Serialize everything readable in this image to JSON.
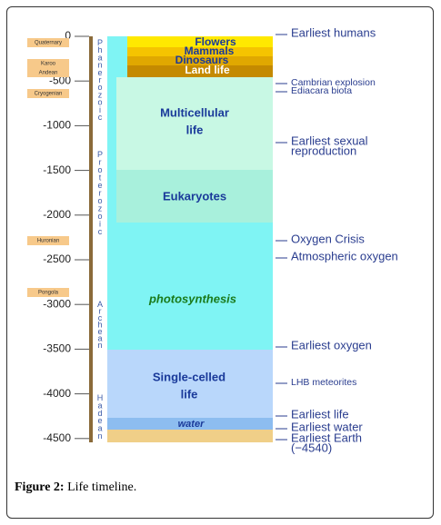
{
  "figure": {
    "axis_ticks": [
      "0",
      "-500",
      "-1000",
      "-1500",
      "-2000",
      "-2500",
      "-3000",
      "-3500",
      "-4000",
      "-4500"
    ],
    "era_labels": [
      "Quaternary",
      "Karoo",
      "Andean",
      "Cryogenian",
      "Huronian",
      "Pongola"
    ],
    "eons": [
      "Phanerozoic",
      "Proterozoic",
      "Archean",
      "Hadean"
    ],
    "blocks": {
      "flowers": "Flowers",
      "mammals": "Mammals",
      "dinosaurs": "Dinosaurs",
      "land_life": "Land life",
      "multicellular": [
        "Multicellular",
        "life"
      ],
      "eukaryotes": "Eukaryotes",
      "photosynthesis": "photosynthesis",
      "single_celled": [
        "Single-celled",
        "life"
      ],
      "water": "water"
    },
    "events": [
      [
        "Earliest humans"
      ],
      [
        "Cambrian explosion"
      ],
      [
        "Ediacara biota"
      ],
      [
        "Earliest sexual",
        "reproduction"
      ],
      [
        "Oxygen Crisis"
      ],
      [
        "Atmospheric oxygen"
      ],
      [
        "Earliest oxygen"
      ],
      [
        "LHB meteorites"
      ],
      [
        "Earliest life"
      ],
      [
        "Earliest water"
      ],
      [
        "Earliest Earth",
        "(−4540)"
      ]
    ],
    "caption": {
      "label": "Figure 2:",
      "text": "Life timeline."
    }
  }
}
